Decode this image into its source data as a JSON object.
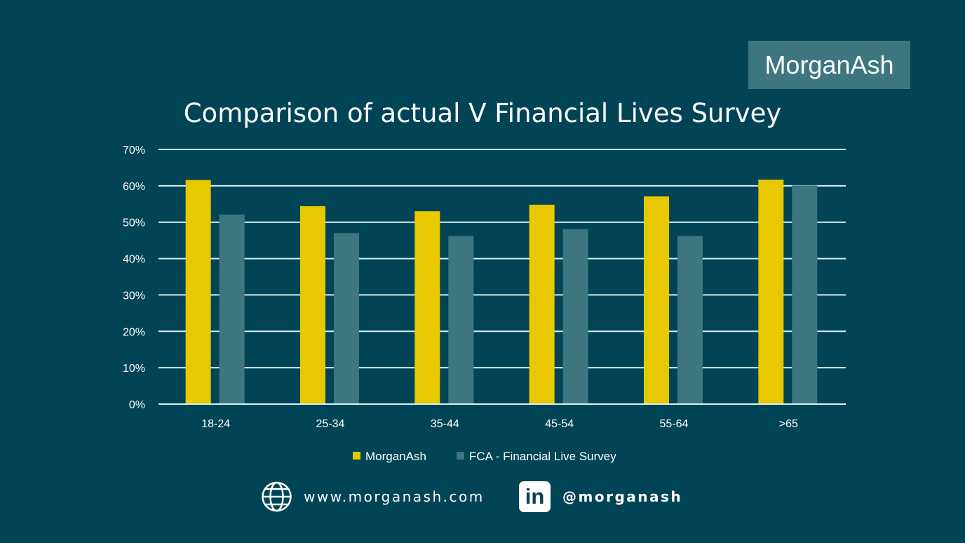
{
  "brand": {
    "logo_text": "MorganAsh"
  },
  "footer": {
    "website": "www.morganash.com",
    "website_icon": "globe-icon",
    "social_icon": "linkedin-icon",
    "social_handle": "@morganash",
    "social_icon_text": "in"
  },
  "colors": {
    "background": "#004455",
    "morganash": "#e8c800",
    "fca": "#3d7680",
    "grid": "#d8eef2"
  },
  "chart_data": {
    "type": "bar",
    "title": "Comparison of actual V Financial Lives Survey",
    "xlabel": "",
    "ylabel": "",
    "ylim": [
      0,
      70
    ],
    "yticks": [
      "0%",
      "10%",
      "20%",
      "30%",
      "40%",
      "50%",
      "60%",
      "70%"
    ],
    "categories": [
      "18-24",
      "25-34",
      "35-44",
      "45-54",
      "55-64",
      ">65"
    ],
    "series": [
      {
        "name": "MorganAsh",
        "values": [
          61.6,
          54.4,
          53.0,
          54.8,
          57.1,
          61.7
        ]
      },
      {
        "name": "FCA - Financial Live Survey",
        "values": [
          52.1,
          47.0,
          46.2,
          48.1,
          46.2,
          60.1
        ]
      }
    ],
    "grid": true,
    "legend": "bottom"
  }
}
